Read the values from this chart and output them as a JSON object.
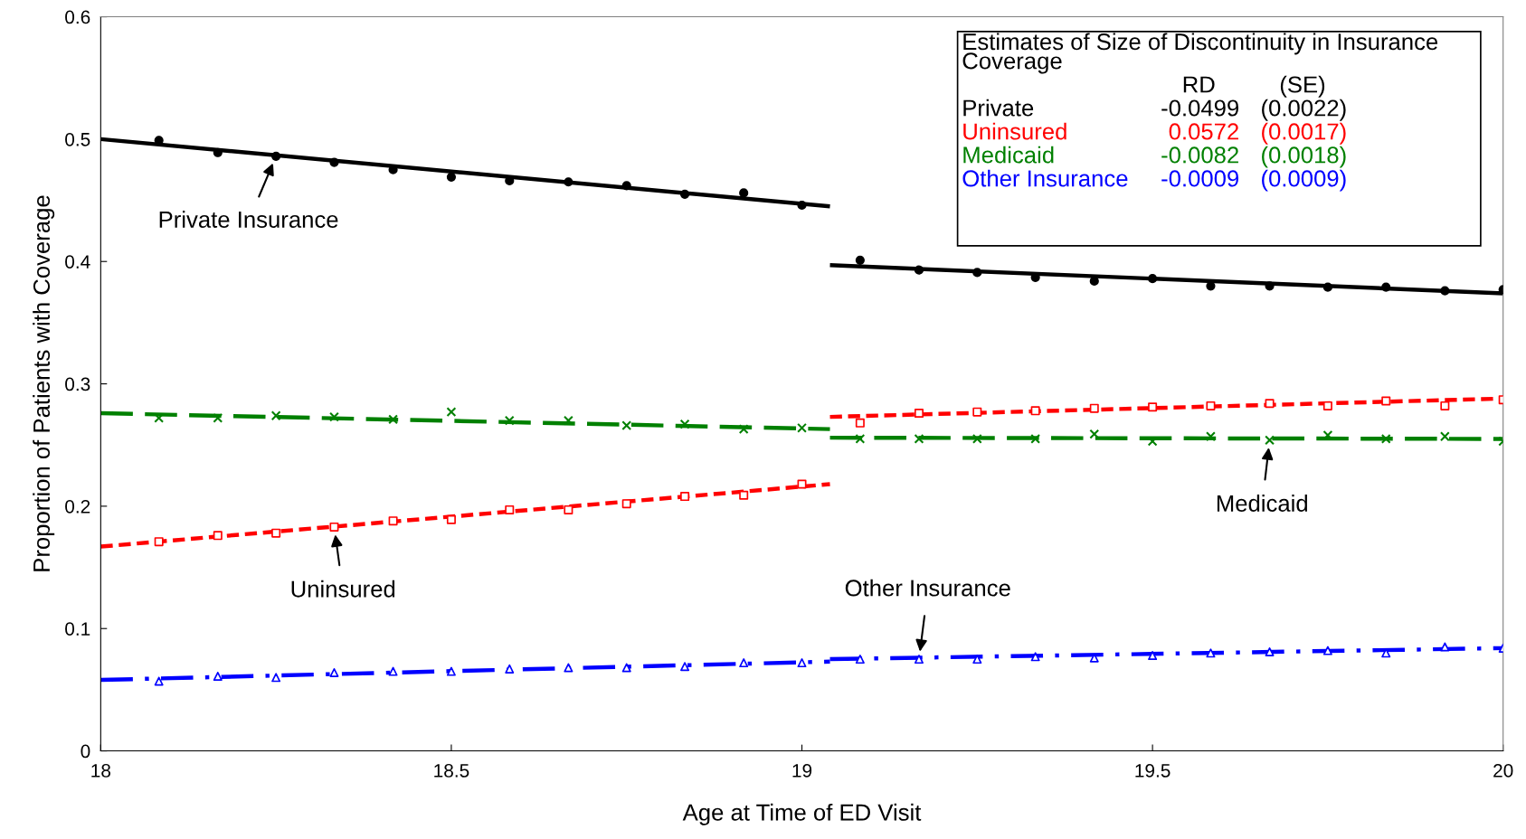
{
  "chart_data": {
    "type": "scatter",
    "xlabel": "Age at Time of ED Visit",
    "ylabel": "Proportion of Patients with Coverage",
    "x": [
      18.083,
      18.167,
      18.25,
      18.333,
      18.417,
      18.5,
      18.583,
      18.667,
      18.75,
      18.833,
      18.917,
      19.0,
      19.083,
      19.167,
      19.25,
      19.333,
      19.417,
      19.5,
      19.583,
      19.667,
      19.75,
      19.833,
      19.917,
      20.0
    ],
    "series": [
      {
        "color": "#000000",
        "marker": "circle",
        "values": [
          0.499,
          0.489,
          0.486,
          0.481,
          0.475,
          0.469,
          0.466,
          0.465,
          0.462,
          0.455,
          0.456,
          0.446,
          0.401,
          0.393,
          0.391,
          0.387,
          0.384,
          0.386,
          0.38,
          0.38,
          0.379,
          0.379,
          0.376,
          0.377
        ]
      },
      {
        "color": "#ff0000",
        "marker": "square",
        "values": [
          0.171,
          0.176,
          0.178,
          0.183,
          0.188,
          0.189,
          0.197,
          0.197,
          0.202,
          0.208,
          0.209,
          0.218,
          0.268,
          0.276,
          0.277,
          0.278,
          0.28,
          0.281,
          0.282,
          0.284,
          0.282,
          0.286,
          0.282,
          0.287
        ]
      },
      {
        "color": "#008000",
        "marker": "cross",
        "values": [
          0.272,
          0.272,
          0.274,
          0.273,
          0.271,
          0.277,
          0.27,
          0.27,
          0.266,
          0.267,
          0.263,
          0.264,
          0.255,
          0.255,
          0.255,
          0.255,
          0.259,
          0.253,
          0.257,
          0.254,
          0.258,
          0.255,
          0.257,
          0.253
        ]
      },
      {
        "color": "#0000ff",
        "marker": "triangle",
        "values": [
          0.057,
          0.061,
          0.06,
          0.064,
          0.065,
          0.065,
          0.067,
          0.068,
          0.068,
          0.069,
          0.072,
          0.072,
          0.075,
          0.075,
          0.075,
          0.077,
          0.076,
          0.078,
          0.08,
          0.081,
          0.082,
          0.08,
          0.085,
          0.084
        ]
      },
      {
        "type": "line",
        "color": "#000000",
        "line_style": "solid",
        "x": [
          18,
          19.04
        ],
        "values": [
          0.5,
          0.445
        ]
      },
      {
        "type": "line",
        "color": "#000000",
        "line_style": "solid",
        "x": [
          19.04,
          20
        ],
        "values": [
          0.397,
          0.374
        ]
      },
      {
        "type": "line",
        "color": "#ff0000",
        "line_style": "dashed",
        "x": [
          18,
          19.04
        ],
        "values": [
          0.167,
          0.218
        ]
      },
      {
        "type": "line",
        "color": "#ff0000",
        "line_style": "dashed",
        "x": [
          19.04,
          20
        ],
        "values": [
          0.273,
          0.288
        ]
      },
      {
        "type": "line",
        "color": "#008000",
        "line_style": "longdash",
        "x": [
          18,
          19.04
        ],
        "values": [
          0.276,
          0.263
        ]
      },
      {
        "type": "line",
        "color": "#008000",
        "line_style": "longdash",
        "x": [
          19.04,
          20
        ],
        "values": [
          0.256,
          0.255
        ]
      },
      {
        "type": "line",
        "color": "#0000ff",
        "line_style": "dashdot",
        "x": [
          18,
          19.04
        ],
        "values": [
          0.058,
          0.073
        ]
      },
      {
        "type": "line",
        "color": "#0000ff",
        "line_style": "dashdot",
        "x": [
          19.04,
          20
        ],
        "values": [
          0.075,
          0.084
        ]
      }
    ],
    "xlim": [
      18,
      20
    ],
    "xticks": [
      18,
      18.5,
      19,
      19.5,
      20
    ],
    "ylim": [
      0,
      0.6
    ],
    "yticks": [
      0,
      0.1,
      0.2,
      0.3,
      0.4,
      0.5,
      0.6
    ],
    "grid": false,
    "legend": false,
    "annotations": [
      {
        "text": "Private Insurance",
        "x": 18.25,
        "y": 0.486
      },
      {
        "text": "Uninsured",
        "x": 18.333,
        "y": 0.183
      },
      {
        "text": "Medicaid",
        "x": 19.667,
        "y": 0.254
      },
      {
        "text": "Other Insurance",
        "x": 19.167,
        "y": 0.075
      },
      "Estimates of Size of Discontinuity in Insurance Coverage",
      "RD",
      "(SE)",
      "Private",
      "-0.0499",
      "(0.0022)",
      "Uninsured",
      "0.0572",
      "(0.0017)",
      "Medicaid",
      "-0.0082",
      "(0.0018)",
      "Other Insurance",
      "-0.0009",
      "(0.0009)"
    ]
  }
}
